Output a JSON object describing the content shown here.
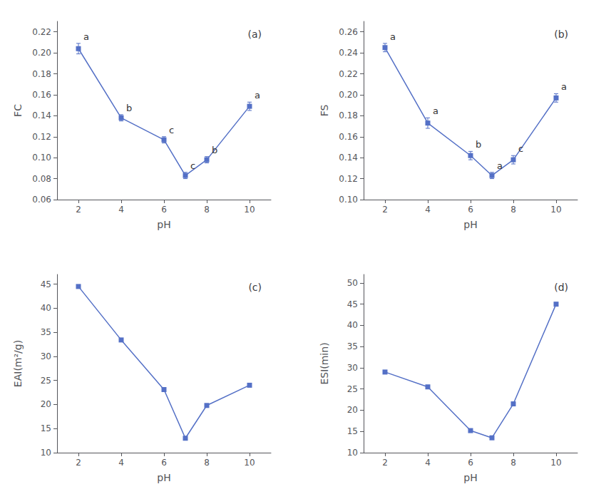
{
  "chart_data": [
    {
      "type": "line",
      "title": "(a)",
      "x_label": "pH",
      "y_label": "FC",
      "x": [
        2,
        4,
        6,
        7,
        8,
        10
      ],
      "values": [
        0.204,
        0.138,
        0.117,
        0.083,
        0.098,
        0.149
      ],
      "errors": [
        0.005,
        0.003,
        0.003,
        0.003,
        0.003,
        0.004
      ],
      "annotations": [
        "a",
        "b",
        "c",
        "c",
        "b",
        "a"
      ],
      "xlim": [
        1,
        11
      ],
      "xticks": [
        2,
        4,
        6,
        8,
        10
      ],
      "ylim": [
        0.06,
        0.23
      ],
      "yticks": [
        0.06,
        0.08,
        {
          "value": 0.1,
          "label": "0.10"
        },
        0.12,
        0.14,
        0.16,
        0.18,
        {
          "value": 0.2,
          "label": "0.20"
        },
        0.22
      ],
      "marker": "square",
      "grid": false
    },
    {
      "type": "line",
      "title": "(b)",
      "x_label": "pH",
      "y_label": "FS",
      "x": [
        2,
        4,
        6,
        7,
        8,
        10
      ],
      "values": [
        0.245,
        0.173,
        0.142,
        0.123,
        0.138,
        0.197
      ],
      "errors": [
        0.004,
        0.005,
        0.004,
        0.003,
        0.004,
        0.004
      ],
      "annotations": [
        "a",
        "a",
        "b",
        "a",
        "c",
        "a"
      ],
      "xlim": [
        1,
        11
      ],
      "xticks": [
        2,
        4,
        6,
        8,
        10
      ],
      "ylim": [
        0.1,
        0.27
      ],
      "yticks": [
        {
          "value": 0.1,
          "label": "0.10"
        },
        0.12,
        0.14,
        0.16,
        0.18,
        {
          "value": 0.2,
          "label": "0.20"
        },
        0.22,
        0.24,
        0.26
      ],
      "marker": "square",
      "grid": false
    },
    {
      "type": "line",
      "title": "(c)",
      "x_label": "pH",
      "y_label": "EAI(m²/g)",
      "x": [
        2,
        4,
        6,
        7,
        8,
        10
      ],
      "values": [
        44.5,
        33.4,
        23.1,
        13.0,
        19.8,
        24.0
      ],
      "xlim": [
        1,
        11
      ],
      "xticks": [
        2,
        4,
        6,
        8,
        10
      ],
      "ylim": [
        10,
        47
      ],
      "yticks": [
        10,
        15,
        20,
        25,
        30,
        35,
        40,
        45
      ],
      "marker": "square",
      "grid": false
    },
    {
      "type": "line",
      "title": "(d)",
      "x_label": "pH",
      "y_label": "ESI(min)",
      "x": [
        2,
        4,
        6,
        7,
        8,
        10
      ],
      "values": [
        29.0,
        25.5,
        15.2,
        13.5,
        21.5,
        45.0
      ],
      "xlim": [
        1,
        11
      ],
      "xticks": [
        2,
        4,
        6,
        8,
        10
      ],
      "ylim": [
        10,
        52
      ],
      "yticks": [
        10,
        15,
        20,
        25,
        30,
        35,
        40,
        45,
        50
      ],
      "marker": "square",
      "grid": false
    }
  ]
}
